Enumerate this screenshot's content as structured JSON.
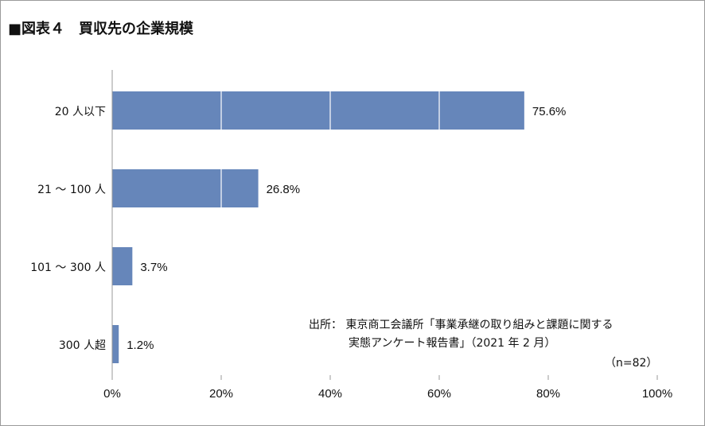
{
  "chart_data": {
    "type": "bar",
    "orientation": "horizontal",
    "title": "■図表４　買収先の企業規模",
    "categories": [
      "20 人以下",
      "21 ～ 100 人",
      "101 ～ 300 人",
      "300 人超"
    ],
    "values": [
      75.6,
      26.8,
      3.7,
      1.2
    ],
    "value_labels": [
      "75.6%",
      "26.8%",
      "3.7%",
      "1.2%"
    ],
    "xlim": [
      0,
      100
    ],
    "xticks": [
      0,
      20,
      40,
      60,
      80,
      100
    ],
    "xtick_labels": [
      "0%",
      "20%",
      "40%",
      "60%",
      "80%",
      "100%"
    ],
    "grid": "white lines inside bars at 20% intervals",
    "bar_color": "#6686ba",
    "annotations": {
      "source_line1": "出所： 東京商工会議所「事業承継の取り組みと課題に関する",
      "source_line2": "実態アンケート報告書」（2021 年 2 月）",
      "sample": "（n=82）"
    }
  }
}
